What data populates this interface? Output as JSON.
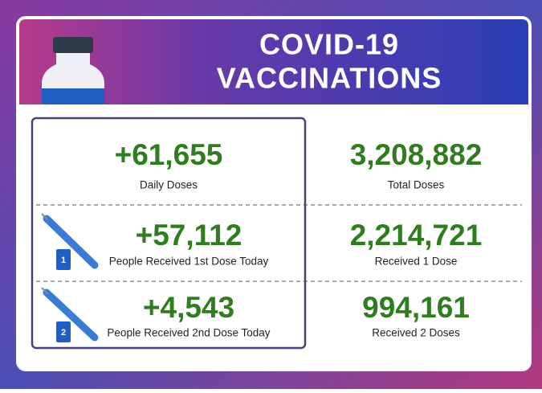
{
  "header": {
    "title_lines": [
      "COVID-19",
      "VACCINATIONS"
    ]
  },
  "stats": {
    "left": [
      {
        "value": "+61,655",
        "label": "Daily Doses"
      },
      {
        "value": "+57,112",
        "label": "People Received 1st Dose Today",
        "badge": "1"
      },
      {
        "value": "+4,543",
        "label": "People Received 2nd Dose Today",
        "badge": "2"
      }
    ],
    "right": [
      {
        "value": "3,208,882",
        "label": "Total Doses"
      },
      {
        "value": "2,214,721",
        "label": "Received 1 Dose"
      },
      {
        "value": "994,161",
        "label": "Received 2 Doses"
      }
    ]
  }
}
